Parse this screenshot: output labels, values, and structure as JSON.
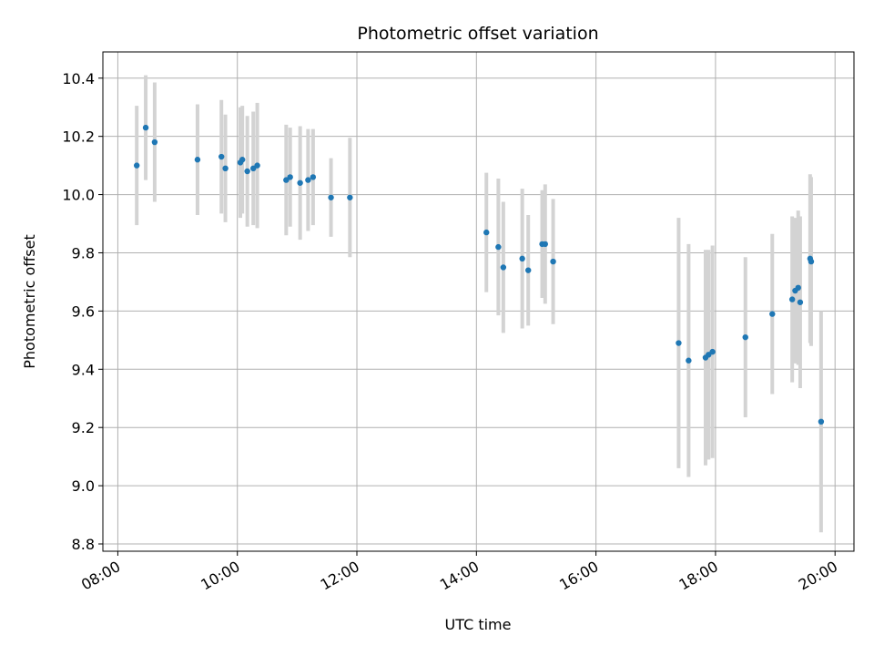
{
  "chart_data": {
    "type": "scatter",
    "title": "Photometric offset variation",
    "xlabel": "UTC time",
    "ylabel": "Photometric offset",
    "x_tick_labels": [
      "08:00",
      "10:00",
      "12:00",
      "14:00",
      "16:00",
      "18:00",
      "20:00"
    ],
    "x_ticks_hours": [
      8,
      10,
      12,
      14,
      16,
      18,
      20
    ],
    "y_ticks": [
      8.8,
      9.0,
      9.2,
      9.4,
      9.6,
      9.8,
      10.0,
      10.2,
      10.4
    ],
    "xlim": [
      "07:45",
      "20:19"
    ],
    "ylim": [
      8.775,
      10.49
    ],
    "grid": true,
    "colors": {
      "point": "#1f77b4",
      "errorbar": "#d3d3d3",
      "grid": "#b0b0b0"
    },
    "points": [
      {
        "x": "08:19",
        "y": 10.1,
        "err": 0.205
      },
      {
        "x": "08:28",
        "y": 10.23,
        "err": 0.18
      },
      {
        "x": "08:37",
        "y": 10.18,
        "err": 0.205
      },
      {
        "x": "09:20",
        "y": 10.12,
        "err": 0.19
      },
      {
        "x": "09:44",
        "y": 10.13,
        "err": 0.195
      },
      {
        "x": "09:48",
        "y": 10.09,
        "err": 0.185
      },
      {
        "x": "10:03",
        "y": 10.11,
        "err": 0.19
      },
      {
        "x": "10:05",
        "y": 10.12,
        "err": 0.185
      },
      {
        "x": "10:10",
        "y": 10.08,
        "err": 0.19
      },
      {
        "x": "10:16",
        "y": 10.09,
        "err": 0.195
      },
      {
        "x": "10:20",
        "y": 10.1,
        "err": 0.215
      },
      {
        "x": "10:49",
        "y": 10.05,
        "err": 0.19
      },
      {
        "x": "10:53",
        "y": 10.06,
        "err": 0.17
      },
      {
        "x": "11:03",
        "y": 10.04,
        "err": 0.195
      },
      {
        "x": "11:11",
        "y": 10.05,
        "err": 0.175
      },
      {
        "x": "11:16",
        "y": 10.06,
        "err": 0.165
      },
      {
        "x": "11:34",
        "y": 9.99,
        "err": 0.135
      },
      {
        "x": "11:53",
        "y": 9.99,
        "err": 0.205
      },
      {
        "x": "14:10",
        "y": 9.87,
        "err": 0.205
      },
      {
        "x": "14:22",
        "y": 9.82,
        "err": 0.235
      },
      {
        "x": "14:27",
        "y": 9.75,
        "err": 0.225
      },
      {
        "x": "14:46",
        "y": 9.78,
        "err": 0.24
      },
      {
        "x": "14:52",
        "y": 9.74,
        "err": 0.19
      },
      {
        "x": "15:06",
        "y": 9.83,
        "err": 0.185
      },
      {
        "x": "15:09",
        "y": 9.83,
        "err": 0.205
      },
      {
        "x": "15:17",
        "y": 9.77,
        "err": 0.215
      },
      {
        "x": "17:23",
        "y": 9.49,
        "err": 0.43
      },
      {
        "x": "17:33",
        "y": 9.43,
        "err": 0.4
      },
      {
        "x": "17:50",
        "y": 9.44,
        "err": 0.37
      },
      {
        "x": "17:53",
        "y": 9.45,
        "err": 0.36
      },
      {
        "x": "17:57",
        "y": 9.46,
        "err": 0.365
      },
      {
        "x": "18:30",
        "y": 9.51,
        "err": 0.275
      },
      {
        "x": "18:57",
        "y": 9.59,
        "err": 0.275
      },
      {
        "x": "19:17",
        "y": 9.64,
        "err": 0.285
      },
      {
        "x": "19:20",
        "y": 9.67,
        "err": 0.25
      },
      {
        "x": "19:23",
        "y": 9.68,
        "err": 0.265
      },
      {
        "x": "19:25",
        "y": 9.63,
        "err": 0.295
      },
      {
        "x": "19:35",
        "y": 9.78,
        "err": 0.29
      },
      {
        "x": "19:36",
        "y": 9.77,
        "err": 0.29
      },
      {
        "x": "19:46",
        "y": 9.22,
        "err": 0.38
      }
    ]
  }
}
